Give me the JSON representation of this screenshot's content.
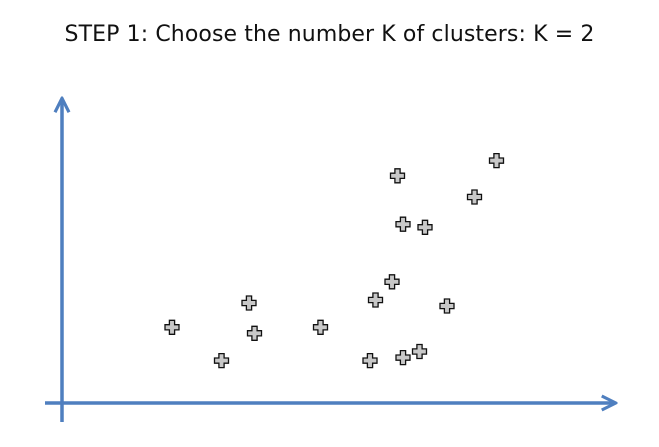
{
  "title": {
    "step": "STEP 1",
    "text": ": Choose the number K of clusters: K = 2"
  },
  "colors": {
    "axis": "#4f7fbf",
    "marker_fill": "#c8c8c8",
    "marker_stroke": "#111111",
    "text": "#111111"
  },
  "icons": {
    "marker": "plus-cross-icon"
  },
  "chart_data": {
    "type": "scatter",
    "x": [
      2.0,
      2.9,
      3.4,
      3.5,
      4.7,
      5.6,
      5.7,
      6.0,
      6.2,
      6.6,
      6.1,
      6.2,
      7.0,
      7.5,
      7.9,
      6.5
    ],
    "y": [
      2.5,
      1.4,
      3.3,
      2.3,
      2.5,
      1.4,
      3.4,
      4.0,
      5.9,
      5.8,
      7.5,
      1.5,
      3.2,
      6.8,
      8.0,
      1.7
    ],
    "xlim": [
      0,
      10
    ],
    "ylim": [
      0,
      10
    ],
    "grid": false
  }
}
